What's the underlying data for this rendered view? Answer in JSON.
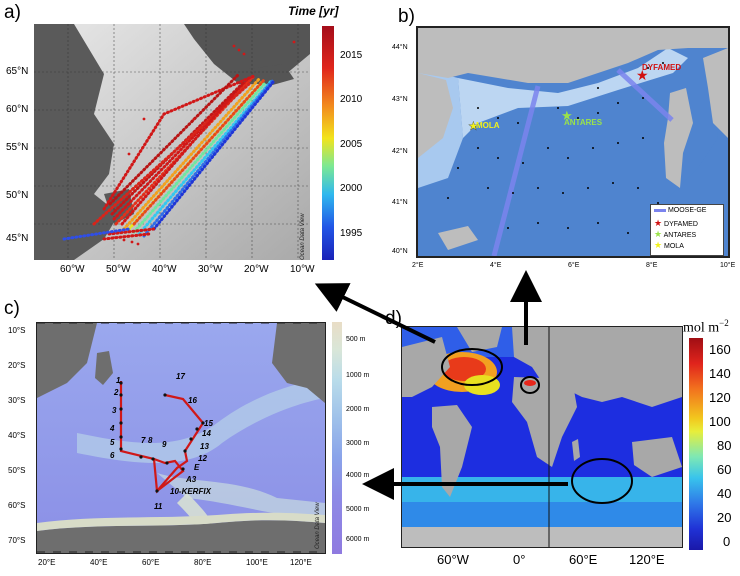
{
  "panel_a": {
    "label": "a)",
    "colorbar_title": "Time [yr]",
    "colorbar_ticks": [
      "2015",
      "2010",
      "2005",
      "2000",
      "1995"
    ],
    "lat_ticks": [
      "65°N",
      "60°N",
      "55°N",
      "50°N",
      "45°N"
    ],
    "lon_ticks": [
      "60°W",
      "50°W",
      "40°W",
      "30°W",
      "20°W",
      "10°W"
    ],
    "watermark": "Ocean Data View"
  },
  "panel_b": {
    "label": "b)",
    "lat_ticks": [
      "44°N",
      "43°N",
      "42°N",
      "41°N",
      "40°N"
    ],
    "lon_ticks": [
      "2°E",
      "4°E",
      "6°E",
      "8°E",
      "10°E"
    ],
    "sites": [
      {
        "name": "DYFAMED",
        "color": "#d01010"
      },
      {
        "name": "ANTARES",
        "color": "#9be34a"
      },
      {
        "name": "MOLA",
        "color": "#f2f21a"
      }
    ],
    "legend": [
      {
        "label": "MOOSE-GE",
        "kind": "line",
        "color": "#7b84ee"
      },
      {
        "label": "DYFAMED",
        "kind": "star",
        "color": "#d01010"
      },
      {
        "label": "ANTARES",
        "kind": "star",
        "color": "#9be34a"
      },
      {
        "label": "MOLA",
        "kind": "star",
        "color": "#f2f21a"
      }
    ]
  },
  "panel_c": {
    "label": "c)",
    "lat_ticks": [
      "10°S",
      "20°S",
      "30°S",
      "40°S",
      "50°S",
      "60°S",
      "70°S"
    ],
    "lon_ticks": [
      "20°E",
      "40°E",
      "60°E",
      "80°E",
      "100°E",
      "120°E"
    ],
    "depth_ticks": [
      "500 m",
      "1000 m",
      "2000 m",
      "3000 m",
      "4000 m",
      "5000 m",
      "6000 m"
    ],
    "station_labels": [
      "1",
      "2",
      "3",
      "4",
      "5",
      "6",
      "7",
      "8",
      "9",
      "11",
      "12",
      "13",
      "14",
      "15",
      "16",
      "17",
      "E",
      "A3",
      "10-KERFIX"
    ],
    "watermark": "Ocean Data View"
  },
  "panel_d": {
    "label": "d)",
    "colorbar_unit": "mol m",
    "colorbar_exp": "−2",
    "colorbar_ticks": [
      "160",
      "140",
      "120",
      "100",
      "80",
      "60",
      "40",
      "20",
      "0"
    ],
    "lon_ticks": [
      "60°W",
      "0°",
      "60°E",
      "120°E"
    ]
  },
  "colors": {
    "arrow": "#000000",
    "track_red": "#d01818",
    "land_grey": "#a8a8a8",
    "ocean_blue": "#6e90d8"
  }
}
